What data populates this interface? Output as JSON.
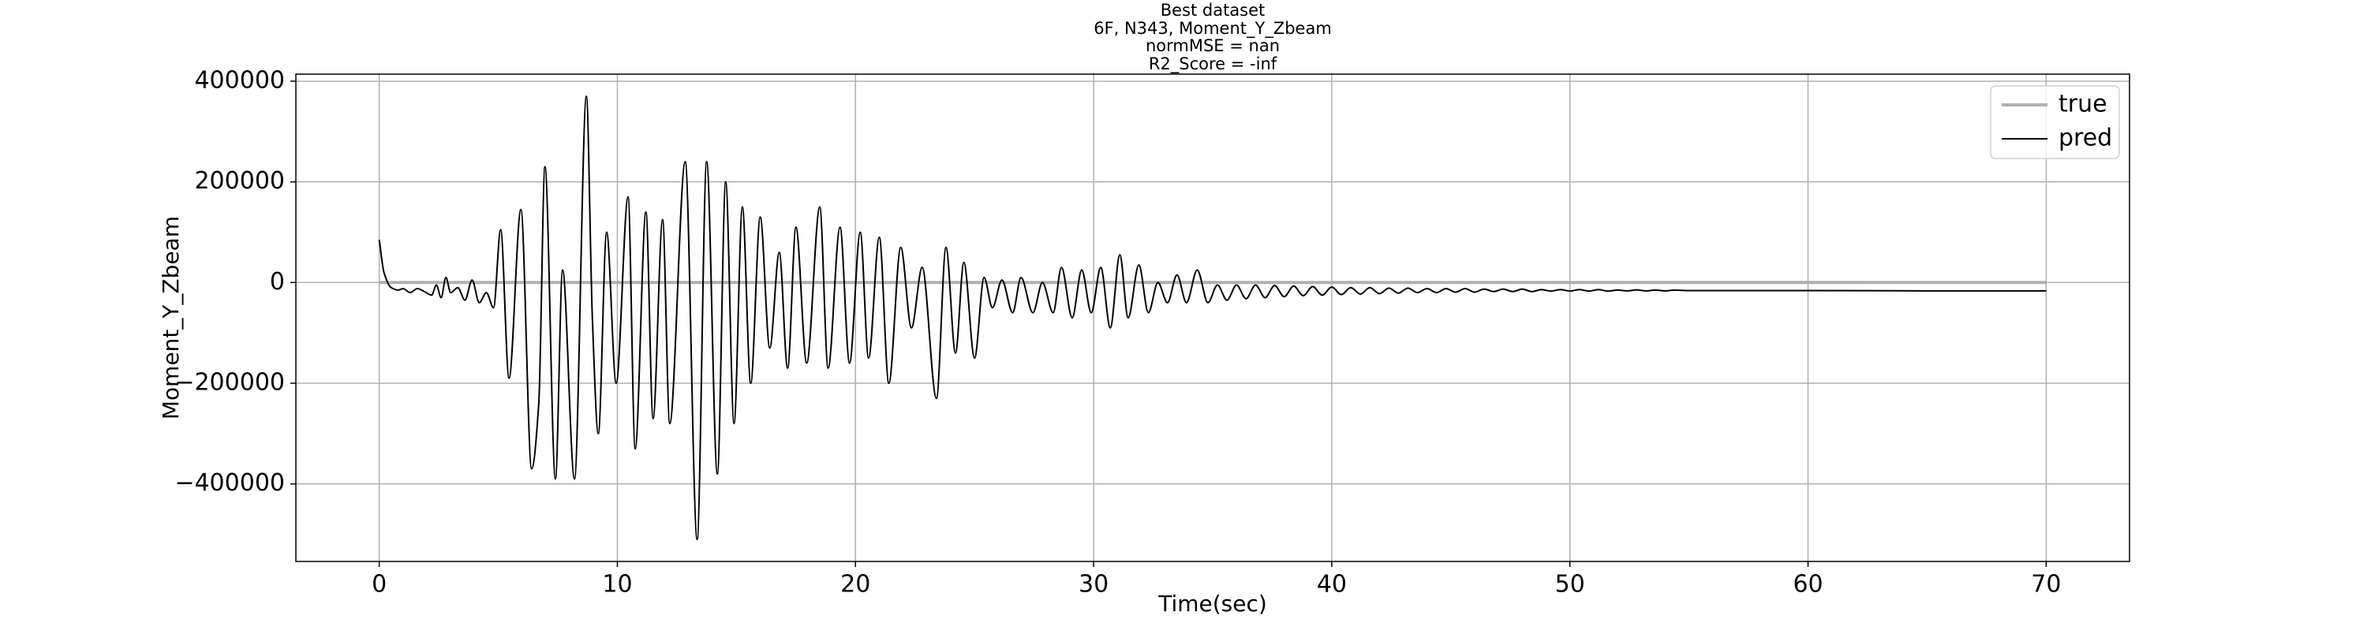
{
  "chart_data": {
    "type": "line",
    "title": [
      "Best dataset",
      "6F, N343, Moment_Y_Zbeam",
      "normMSE = nan",
      "R2_Score = -inf"
    ],
    "xlabel": "Time(sec)",
    "ylabel": "Moment_Y_Zbeam",
    "xlim": [
      -3.5,
      73.5
    ],
    "ylim": [
      -554000,
      414000
    ],
    "xticks": [
      0,
      10,
      20,
      30,
      40,
      50,
      60,
      70
    ],
    "yticks": [
      {
        "value": -400000,
        "label": "−400000"
      },
      {
        "value": -200000,
        "label": "−200000"
      },
      0,
      200000,
      400000
    ],
    "grid": true,
    "legend": "upper right",
    "series": [
      {
        "name": "true",
        "color": "#b0b0b0",
        "x": [
          0,
          70
        ],
        "values": [
          0,
          0
        ]
      },
      {
        "name": "pred",
        "color": "#000000",
        "x": [
          0,
          0.2,
          0.5,
          0.8,
          1.0,
          1.3,
          1.6,
          1.9,
          2.2,
          2.4,
          2.6,
          2.8,
          3.0,
          3.3,
          3.6,
          3.9,
          4.2,
          4.5,
          4.8,
          5.1,
          5.45,
          5.95,
          6.4,
          6.7,
          6.96,
          7.4,
          7.7,
          8.2,
          8.7,
          8.95,
          9.2,
          9.55,
          9.95,
          10.45,
          10.75,
          11.2,
          11.5,
          11.9,
          12.2,
          12.85,
          13.35,
          13.75,
          14.2,
          14.55,
          14.9,
          15.25,
          15.6,
          16.0,
          16.4,
          16.8,
          17.15,
          17.5,
          17.95,
          18.5,
          18.85,
          19.35,
          19.75,
          20.2,
          20.55,
          21.0,
          21.4,
          21.9,
          22.35,
          22.8,
          23.4,
          23.8,
          24.2,
          24.55,
          25.0,
          25.4,
          25.75,
          26.15,
          26.6,
          26.95,
          27.45,
          27.85,
          28.3,
          28.65,
          29.1,
          29.5,
          29.9,
          30.3,
          30.7,
          31.1,
          31.45,
          31.9,
          32.3,
          32.7,
          33.1,
          33.5,
          33.9,
          34.35,
          34.8,
          35.2,
          35.6,
          36.0,
          36.4,
          36.8,
          37.2,
          37.6,
          38.0,
          38.4,
          38.8,
          39.2,
          39.6,
          40.0,
          40.4,
          40.8,
          41.2,
          41.6,
          42.0,
          42.4,
          42.8,
          43.2,
          43.6,
          44.0,
          44.4,
          44.8,
          45.2,
          45.6,
          46.0,
          46.4,
          46.8,
          47.2,
          47.6,
          48.0,
          48.4,
          48.8,
          49.2,
          49.6,
          50.0,
          50.4,
          50.8,
          51.2,
          51.6,
          52.0,
          52.4,
          52.8,
          53.2,
          53.6,
          54.0,
          54.4,
          55,
          56,
          60,
          65,
          70
        ],
        "values": [
          85000,
          20000,
          -10000,
          -15000,
          -12000,
          -20000,
          -12000,
          -18000,
          -25000,
          -5000,
          -30000,
          10000,
          -20000,
          -10000,
          -35000,
          5000,
          -40000,
          -20000,
          -50000,
          105000,
          -190000,
          145000,
          -370000,
          -240000,
          230000,
          -390000,
          25000,
          -390000,
          370000,
          -70000,
          -300000,
          100000,
          -200000,
          170000,
          -330000,
          140000,
          -270000,
          125000,
          -280000,
          240000,
          -510000,
          240000,
          -380000,
          200000,
          -280000,
          150000,
          -200000,
          130000,
          -130000,
          60000,
          -170000,
          110000,
          -160000,
          150000,
          -170000,
          110000,
          -160000,
          100000,
          -150000,
          90000,
          -200000,
          70000,
          -90000,
          30000,
          -230000,
          70000,
          -140000,
          40000,
          -150000,
          10000,
          -50000,
          5000,
          -60000,
          10000,
          -60000,
          0,
          -60000,
          30000,
          -70000,
          25000,
          -60000,
          30000,
          -90000,
          55000,
          -70000,
          35000,
          -60000,
          0,
          -40000,
          15000,
          -40000,
          25000,
          -40000,
          -5000,
          -35000,
          -5000,
          -32000,
          -5000,
          -30000,
          -6000,
          -28000,
          -7000,
          -26000,
          -8000,
          -25000,
          -9000,
          -24000,
          -10000,
          -23000,
          -10000,
          -22000,
          -11000,
          -21000,
          -11000,
          -20000,
          -12000,
          -20000,
          -12000,
          -19000,
          -12000,
          -19000,
          -13000,
          -18000,
          -13000,
          -18000,
          -13000,
          -18000,
          -14000,
          -17000,
          -14000,
          -17000,
          -14000,
          -17000,
          -14000,
          -17000,
          -15000,
          -16500,
          -14500,
          -16500,
          -15000,
          -16500,
          -15000,
          -16000,
          -16000,
          -16000,
          -16500,
          -16500
        ]
      }
    ]
  }
}
